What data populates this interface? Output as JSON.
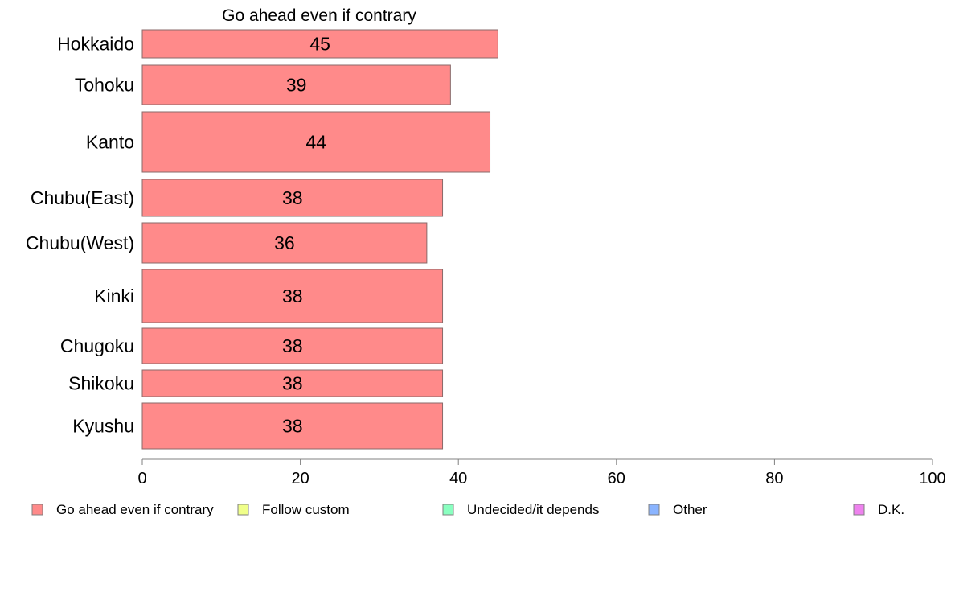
{
  "chart_data": {
    "type": "bar",
    "orientation": "horizontal",
    "title": "Go ahead even if contrary",
    "categories": [
      "Hokkaido",
      "Tohoku",
      "Kanto",
      "Chubu(East)",
      "Chubu(West)",
      "Kinki",
      "Chugoku",
      "Shikoku",
      "Kyushu"
    ],
    "series": [
      {
        "name": "Go ahead even if contrary",
        "values": [
          45,
          39,
          44,
          38,
          36,
          38,
          38,
          38,
          38
        ],
        "color": "#ff8a8a"
      }
    ],
    "xlim": [
      0,
      100
    ],
    "xticks": [
      0,
      20,
      40,
      60,
      80,
      100
    ],
    "grid": false,
    "legend_position": "bottom",
    "legend": [
      {
        "label": "Go ahead even if contrary",
        "color": "#ff8a8a"
      },
      {
        "label": "Follow custom",
        "color": "#f0ff8a"
      },
      {
        "label": "Undecided/it depends",
        "color": "#8affc0"
      },
      {
        "label": "Other",
        "color": "#8ab4ff"
      },
      {
        "label": "D.K.",
        "color": "#ee82ee"
      }
    ]
  }
}
